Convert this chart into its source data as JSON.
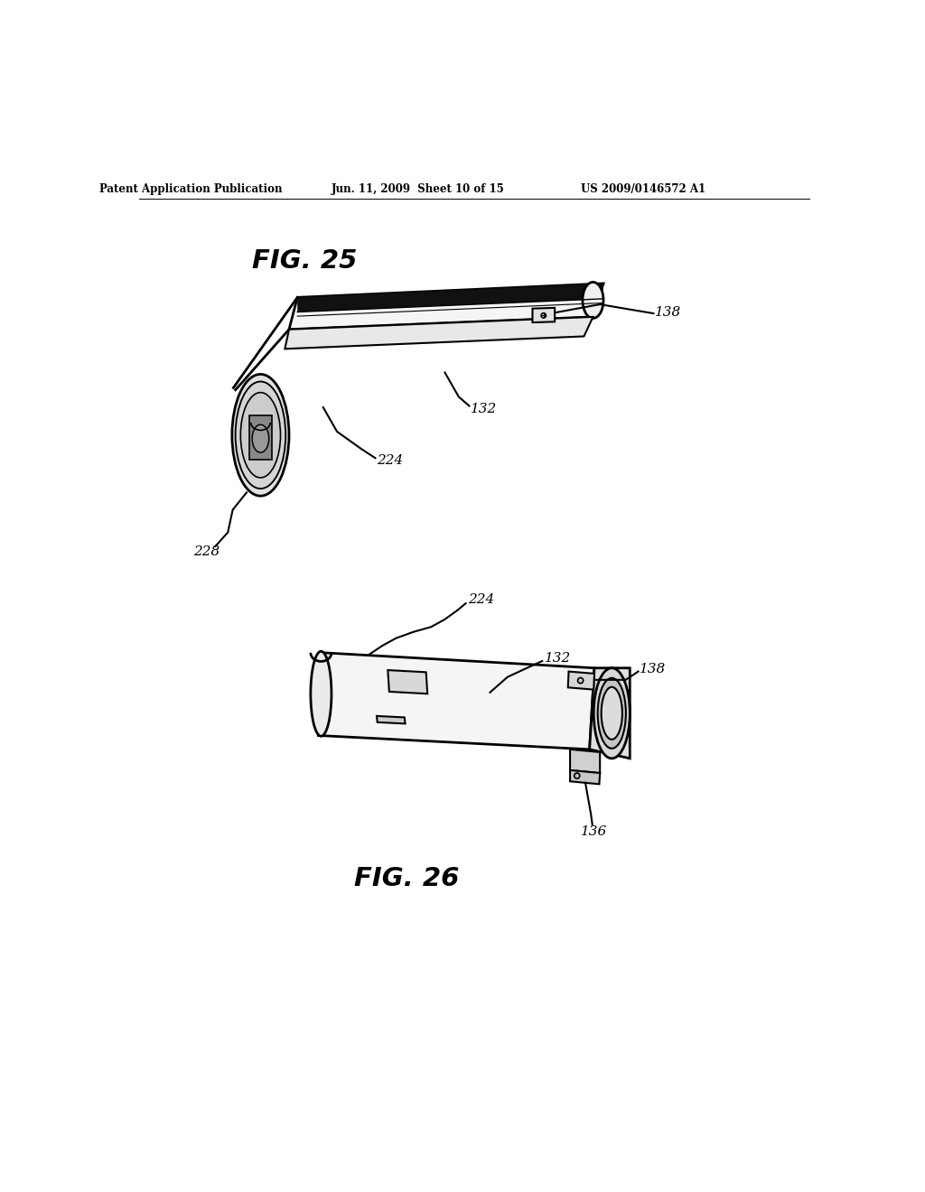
{
  "background_color": "#ffffff",
  "header_left": "Patent Application Publication",
  "header_center": "Jun. 11, 2009  Sheet 10 of 15",
  "header_right": "US 2009/0146572 A1",
  "fig25_label": "FIG. 25",
  "fig26_label": "FIG. 26",
  "line_color": "#000000",
  "lw": 1.5,
  "tlw": 2.0
}
